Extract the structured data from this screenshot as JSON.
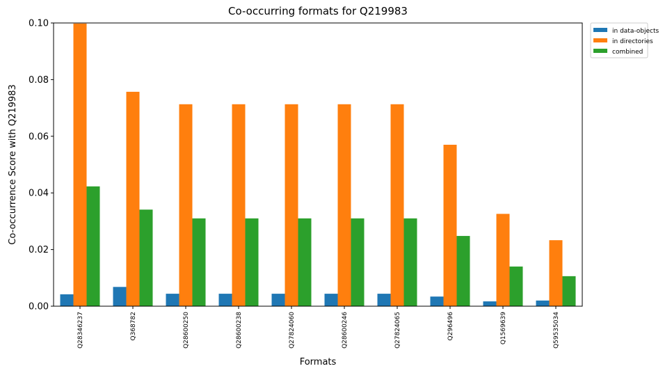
{
  "chart_data": {
    "type": "bar",
    "title": "Co-occurring formats for Q219983",
    "xlabel": "Formats",
    "ylabel": "Co-occurrence Score with Q219983",
    "ylim": [
      0,
      0.1
    ],
    "yticks": [
      "0.00",
      "0.02",
      "0.04",
      "0.06",
      "0.08",
      "0.10"
    ],
    "ytick_values": [
      0,
      0.02,
      0.04,
      0.06,
      0.08,
      0.1
    ],
    "categories": [
      "Q28346237",
      "Q368782",
      "Q28600250",
      "Q28600238",
      "Q27824060",
      "Q28600246",
      "Q27824065",
      "Q296496",
      "Q1569639",
      "Q59535034"
    ],
    "series": [
      {
        "name": "in data-objects",
        "color": "#1f77b4",
        "values": [
          0.0042,
          0.0068,
          0.0044,
          0.0044,
          0.0044,
          0.0044,
          0.0044,
          0.0034,
          0.0017,
          0.002
        ]
      },
      {
        "name": "in directories",
        "color": "#ff7f0e",
        "values": [
          0.0998,
          0.0757,
          0.0713,
          0.0713,
          0.0713,
          0.0713,
          0.0713,
          0.057,
          0.0326,
          0.0233
        ]
      },
      {
        "name": "combined",
        "color": "#2ca02c",
        "values": [
          0.0423,
          0.0341,
          0.031,
          0.031,
          0.031,
          0.031,
          0.031,
          0.0248,
          0.014,
          0.0106
        ]
      }
    ],
    "grid": false,
    "legend_position": "outside-top-right"
  }
}
